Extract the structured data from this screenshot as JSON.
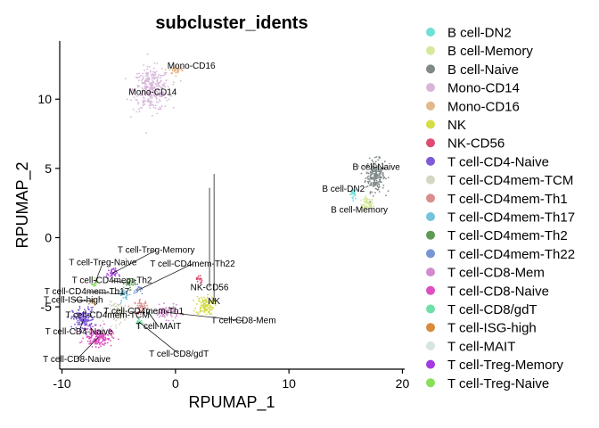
{
  "chart_data": {
    "type": "scatter",
    "title": "subcluster_idents",
    "xlabel": "RPUMAP_1",
    "ylabel": "RPUMAP_2",
    "xlim": [
      -10.2,
      20.2
    ],
    "ylim": [
      -9.5,
      14.2
    ],
    "xticks": [
      -10,
      0,
      10,
      20
    ],
    "yticks": [
      -5,
      0,
      5,
      10
    ],
    "grid": false,
    "legend_position": "right",
    "series": [
      {
        "name": "B cell-DN2",
        "color": "#6fe0d6",
        "center": [
          15.7,
          3.2
        ],
        "spread": [
          0.25,
          0.35
        ],
        "n": 25
      },
      {
        "name": "B cell-Memory",
        "color": "#d6e89a",
        "center": [
          16.9,
          2.4
        ],
        "spread": [
          0.45,
          0.4
        ],
        "n": 70
      },
      {
        "name": "B cell-Naive",
        "color": "#7f8a88",
        "center": [
          17.6,
          4.5
        ],
        "spread": [
          0.7,
          0.95
        ],
        "n": 220
      },
      {
        "name": "Mono-CD14",
        "color": "#d7b6da",
        "center": [
          -2.1,
          10.7
        ],
        "spread": [
          1.35,
          1.3
        ],
        "n": 330
      },
      {
        "name": "Mono-CD16",
        "color": "#e3b98b",
        "center": [
          0.1,
          12.1
        ],
        "spread": [
          0.55,
          0.25
        ],
        "n": 40
      },
      {
        "name": "NK",
        "color": "#d4dc47",
        "center": [
          2.6,
          -4.9
        ],
        "spread": [
          0.65,
          0.55
        ],
        "n": 120
      },
      {
        "name": "NK-CD56",
        "color": "#e04a73",
        "center": [
          2.1,
          -3.0
        ],
        "spread": [
          0.2,
          0.3
        ],
        "n": 18
      },
      {
        "name": "T cell-CD4-Naive",
        "color": "#7e5bd6",
        "center": [
          -8.1,
          -5.9
        ],
        "spread": [
          0.8,
          0.7
        ],
        "n": 160
      },
      {
        "name": "T cell-CD4mem-TCM",
        "color": "#d4d6c2",
        "center": [
          -5.0,
          -5.4
        ],
        "spread": [
          0.8,
          0.6
        ],
        "n": 90
      },
      {
        "name": "T cell-CD4mem-Th1",
        "color": "#d98e8b",
        "center": [
          -3.0,
          -5.0
        ],
        "spread": [
          0.5,
          0.4
        ],
        "n": 45
      },
      {
        "name": "T cell-CD4mem-Th17",
        "color": "#74c3dd",
        "center": [
          -4.5,
          -4.1
        ],
        "spread": [
          0.4,
          0.35
        ],
        "n": 30
      },
      {
        "name": "T cell-CD4mem-Th2",
        "color": "#5f9a55",
        "center": [
          -4.0,
          -3.3
        ],
        "spread": [
          0.4,
          0.35
        ],
        "n": 30
      },
      {
        "name": "T cell-CD4mem-Th22",
        "color": "#7895d4",
        "center": [
          -3.3,
          -3.8
        ],
        "spread": [
          0.3,
          0.3
        ],
        "n": 20
      },
      {
        "name": "T cell-CD8-Mem",
        "color": "#d18bcc",
        "center": [
          -0.8,
          -5.4
        ],
        "spread": [
          0.9,
          0.4
        ],
        "n": 90
      },
      {
        "name": "T cell-CD8-Naive",
        "color": "#de4fc2",
        "center": [
          -6.8,
          -7.2
        ],
        "spread": [
          1.0,
          0.55
        ],
        "n": 170
      },
      {
        "name": "T cell-CD8/gdT",
        "color": "#6fe0a6",
        "center": [
          -3.2,
          -6.1
        ],
        "spread": [
          0.3,
          0.3
        ],
        "n": 20
      },
      {
        "name": "T cell-ISG-high",
        "color": "#d98a3a",
        "center": [
          -7.3,
          -4.6
        ],
        "spread": [
          0.2,
          0.2
        ],
        "n": 10
      },
      {
        "name": "T cell-MAIT",
        "color": "#d6e4e2",
        "center": [
          -2.3,
          -5.5
        ],
        "spread": [
          0.35,
          0.3
        ],
        "n": 25
      },
      {
        "name": "T cell-Treg-Memory",
        "color": "#a33be0",
        "center": [
          -5.6,
          -2.6
        ],
        "spread": [
          0.4,
          0.3
        ],
        "n": 35
      },
      {
        "name": "T cell-Treg-Naive",
        "color": "#88e05a",
        "center": [
          -7.1,
          -3.3
        ],
        "spread": [
          0.2,
          0.3
        ],
        "n": 14
      }
    ],
    "annotations": [
      {
        "text": "B cell-Naive",
        "x": 17.7,
        "y": 5.1,
        "ax": 17.7,
        "ay": 5.1
      },
      {
        "text": "B cell-DN2",
        "x": 14.8,
        "y": 3.5,
        "ax": 14.8,
        "ay": 3.5
      },
      {
        "text": "B cell-Memory",
        "x": 16.2,
        "y": 2.0,
        "ax": 16.2,
        "ay": 2.0
      },
      {
        "text": "Mono-CD14",
        "x": -2.0,
        "y": 10.5,
        "ax": -2.0,
        "ay": 10.5
      },
      {
        "text": "Mono-CD16",
        "x": 1.4,
        "y": 12.4,
        "ax": 1.4,
        "ay": 12.4
      },
      {
        "text": "NK",
        "x": 3.4,
        "y": -4.6,
        "ax": 3.4,
        "ay": 4.6
      },
      {
        "text": "NK-CD56",
        "x": 3.0,
        "y": -3.6,
        "ax": 3.0,
        "ay": 3.6
      },
      {
        "text": "T cell-Treg-Memory",
        "x": -1.7,
        "y": -0.9,
        "ax": -5.6,
        "ay": -2.6
      },
      {
        "text": "T cell-Treg-Naive",
        "x": -6.4,
        "y": -1.8,
        "ax": -7.1,
        "ay": -3.3
      },
      {
        "text": "T cell-CD4mem-Th22",
        "x": 1.5,
        "y": -1.9,
        "ax": -3.3,
        "ay": -3.8
      },
      {
        "text": "T cell-CD4mem-Th2",
        "x": -5.6,
        "y": -3.1,
        "ax": -4.0,
        "ay": -3.3
      },
      {
        "text": "T cell-CD4mem-Th17",
        "x": -7.8,
        "y": -3.9,
        "ax": -4.5,
        "ay": -4.1
      },
      {
        "text": "T cell-ISG-high",
        "x": -9.0,
        "y": -4.5,
        "ax": -7.3,
        "ay": -4.6
      },
      {
        "text": "T cell-CD4mem-Th1",
        "x": -2.8,
        "y": -5.3,
        "ax": -3.0,
        "ay": -5.0
      },
      {
        "text": "T cell-CD4mem-TCM",
        "x": -6.0,
        "y": -5.6,
        "ax": -5.0,
        "ay": -5.4
      },
      {
        "text": "T cell-CD8-Mem",
        "x": 6.0,
        "y": -6.0,
        "ax": -0.8,
        "ay": -5.4
      },
      {
        "text": "T cell-MAIT",
        "x": -1.5,
        "y": -6.4,
        "ax": -2.3,
        "ay": -5.5
      },
      {
        "text": "T cell-CD4-Naive",
        "x": -8.5,
        "y": -6.8,
        "ax": -8.1,
        "ay": -5.9
      },
      {
        "text": "T cell-CD8/gdT",
        "x": 0.3,
        "y": -8.4,
        "ax": -3.2,
        "ay": -6.1
      },
      {
        "text": "T cell-CD8-Naive",
        "x": -8.7,
        "y": -8.8,
        "ax": -6.8,
        "ay": -7.2
      }
    ]
  }
}
